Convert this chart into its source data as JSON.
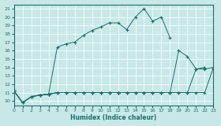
{
  "xlabel": "Humidex (Indice chaleur)",
  "bg_color": "#c8e8e8",
  "line_color": "#1a6e6e",
  "xlim": [
    0,
    23
  ],
  "ylim": [
    9.5,
    21.5
  ],
  "xticks": [
    0,
    1,
    2,
    3,
    4,
    5,
    6,
    7,
    8,
    9,
    10,
    11,
    12,
    13,
    14,
    15,
    16,
    17,
    18,
    19,
    20,
    21,
    22,
    23
  ],
  "yticks": [
    10,
    11,
    12,
    13,
    14,
    15,
    16,
    17,
    18,
    19,
    20,
    21
  ],
  "series": [
    {
      "x": [
        0,
        1,
        2,
        3,
        4,
        5,
        6,
        7,
        8,
        9,
        10,
        11,
        12,
        13,
        14,
        15,
        16,
        17,
        18
      ],
      "y": [
        11.2,
        9.8,
        10.5,
        10.7,
        10.8,
        16.4,
        16.8,
        17.0,
        17.8,
        18.4,
        18.8,
        19.3,
        19.3,
        18.5,
        20.0,
        21.0,
        19.5,
        20.0,
        17.5
      ]
    },
    {
      "x": [
        0,
        1,
        2,
        3,
        4,
        5,
        6,
        7,
        8,
        9,
        10,
        11,
        12,
        13,
        14,
        15,
        16,
        17,
        18,
        19,
        20,
        21,
        22
      ],
      "y": [
        11.2,
        9.8,
        10.5,
        10.7,
        10.8,
        11.0,
        11.0,
        11.0,
        11.0,
        11.0,
        11.0,
        11.0,
        11.0,
        11.0,
        11.0,
        11.0,
        11.0,
        11.0,
        11.0,
        16.0,
        15.3,
        13.8,
        14.0
      ]
    },
    {
      "x": [
        0,
        1,
        2,
        3,
        4,
        5,
        6,
        7,
        8,
        9,
        10,
        11,
        12,
        13,
        14,
        15,
        16,
        17,
        18,
        19,
        20,
        21,
        22,
        23
      ],
      "y": [
        11.2,
        9.8,
        10.5,
        10.7,
        10.8,
        11.0,
        11.0,
        11.0,
        11.0,
        11.0,
        11.0,
        11.0,
        11.0,
        11.0,
        11.0,
        11.0,
        11.0,
        11.0,
        11.0,
        11.0,
        11.0,
        13.8,
        13.8,
        14.0
      ]
    },
    {
      "x": [
        0,
        1,
        2,
        3,
        4,
        5,
        6,
        7,
        8,
        9,
        10,
        11,
        12,
        13,
        14,
        15,
        16,
        17,
        18,
        19,
        20,
        21,
        22,
        23
      ],
      "y": [
        11.2,
        9.8,
        10.5,
        10.7,
        10.8,
        11.0,
        11.0,
        11.0,
        11.0,
        11.0,
        11.0,
        11.0,
        11.0,
        11.0,
        11.0,
        11.0,
        11.0,
        11.0,
        11.0,
        11.0,
        11.0,
        11.0,
        11.0,
        14.0
      ]
    }
  ]
}
